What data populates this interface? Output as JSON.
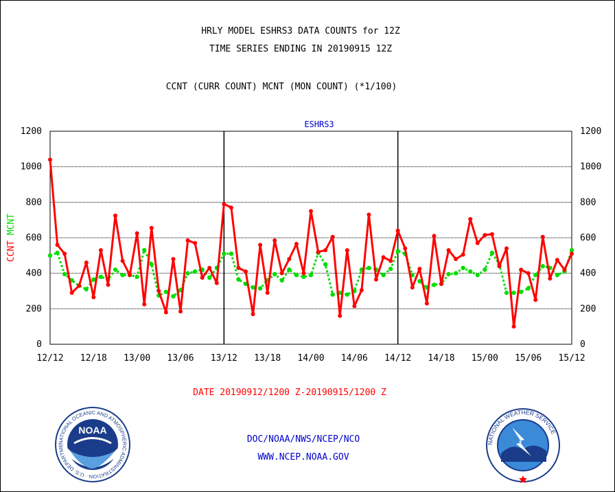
{
  "header": {
    "title_line1": "HRLY MODEL ESHRS3 DATA COUNTS for 12Z",
    "title_line2": "TIME SERIES ENDING IN 20190915 12Z",
    "subtitle": "CCNT (CURR COUNT) MCNT (MON COUNT) (*1/100)"
  },
  "footer": {
    "date_range": "DATE 20190912/1200 Z-20190915/1200 Z",
    "org": "DOC/NOAA/NWS/NCEP/NCO",
    "url": "WWW.NCEP.NOAA.GOV"
  },
  "logos": {
    "noaa_text": "NOAA",
    "noaa_ring_text": "NATIONAL OCEANIC AND ATMOSPHERIC ADMINISTRATION · U.S. DEPARTMENT OF COMMERCE ·",
    "nws_ring_text": "NATIONAL WEATHER SERVICE"
  },
  "colors": {
    "ccnt": "#ff0000",
    "mcnt": "#00dd00",
    "title_blue": "#0000cc",
    "frame": "#000000"
  },
  "chart_data": {
    "type": "line",
    "title": "ESHRS3",
    "ylabel_ccnt": "CCNT",
    "ylabel_mcnt": "MCNT",
    "ylim": [
      0,
      1200
    ],
    "yticks": [
      0,
      200,
      400,
      600,
      800,
      1000,
      1200
    ],
    "x_tick_labels": [
      "12/12",
      "12/18",
      "13/00",
      "13/06",
      "13/12",
      "13/18",
      "14/00",
      "14/06",
      "14/12",
      "14/18",
      "15/00",
      "15/06",
      "15/12"
    ],
    "x_day_boundaries": [
      "13/12",
      "14/12"
    ],
    "grid": true,
    "x_hours": [
      0,
      1,
      2,
      3,
      4,
      5,
      6,
      7,
      8,
      9,
      10,
      11,
      12,
      13,
      14,
      15,
      16,
      17,
      18,
      19,
      20,
      21,
      22,
      23,
      24,
      25,
      26,
      27,
      28,
      29,
      30,
      31,
      32,
      33,
      34,
      35,
      36,
      37,
      38,
      39,
      40,
      41,
      42,
      43,
      44,
      45,
      46,
      47,
      48,
      49,
      50,
      51,
      52,
      53,
      54,
      55,
      56,
      57,
      58,
      59,
      60,
      61,
      62,
      63,
      64,
      65,
      66,
      67,
      68,
      69,
      70,
      71,
      72
    ],
    "series": [
      {
        "name": "CCNT",
        "values": [
          1040,
          560,
          510,
          290,
          330,
          460,
          265,
          530,
          335,
          725,
          470,
          390,
          625,
          225,
          655,
          300,
          180,
          480,
          185,
          585,
          570,
          375,
          430,
          345,
          790,
          770,
          430,
          410,
          170,
          560,
          290,
          585,
          400,
          480,
          565,
          400,
          750,
          520,
          530,
          605,
          160,
          530,
          215,
          305,
          730,
          365,
          490,
          470,
          640,
          540,
          320,
          425,
          230,
          610,
          340,
          530,
          480,
          505,
          705,
          570,
          615,
          620,
          440,
          540,
          100,
          420,
          400,
          250,
          605,
          370,
          475,
          420,
          510
        ]
      },
      {
        "name": "MCNT",
        "values": [
          500,
          515,
          395,
          360,
          330,
          310,
          365,
          380,
          365,
          420,
          390,
          390,
          380,
          530,
          450,
          275,
          295,
          270,
          305,
          400,
          410,
          420,
          375,
          430,
          510,
          510,
          365,
          340,
          320,
          315,
          360,
          395,
          360,
          420,
          390,
          380,
          390,
          515,
          450,
          280,
          290,
          280,
          300,
          420,
          430,
          420,
          390,
          425,
          525,
          510,
          390,
          355,
          320,
          335,
          340,
          395,
          400,
          430,
          410,
          390,
          420,
          515,
          450,
          290,
          290,
          295,
          315,
          390,
          440,
          430,
          390,
          410,
          530
        ]
      }
    ]
  }
}
